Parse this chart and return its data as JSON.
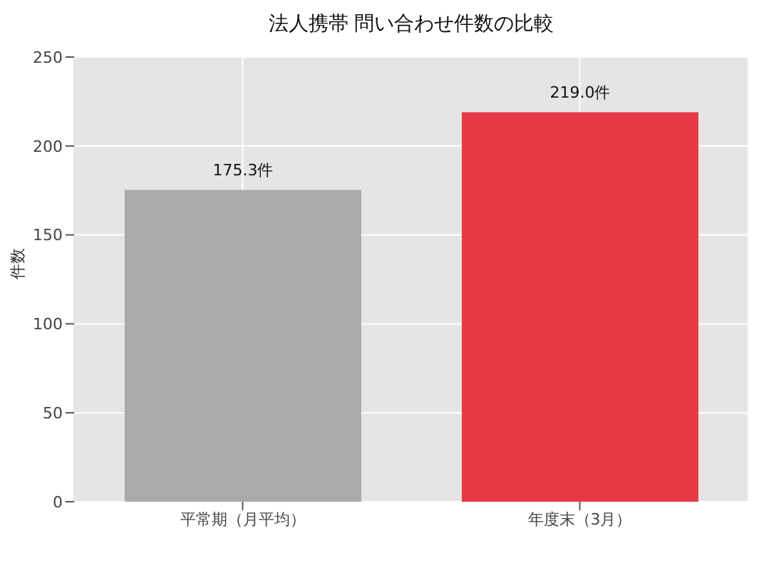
{
  "chart_data": {
    "type": "bar",
    "title": "法人携帯 問い合わせ件数の比較",
    "ylabel": "件数",
    "categories": [
      "平常期（月平均）",
      "年度末（3月）"
    ],
    "values": [
      175.3,
      219.0
    ],
    "colors": [
      "#aaaaaa",
      "#e63946"
    ],
    "value_labels": [
      "175.3件",
      "219.0件"
    ],
    "ylim": [
      0,
      250
    ],
    "yticks": [
      0,
      50,
      100,
      150,
      200,
      250
    ],
    "grid": true
  }
}
